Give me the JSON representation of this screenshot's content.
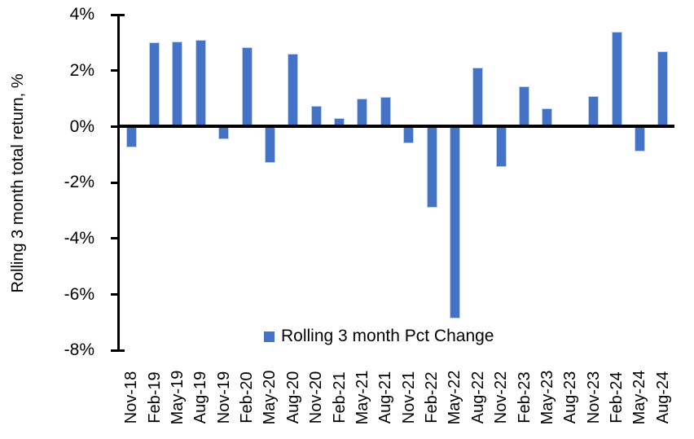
{
  "chart_data": {
    "type": "bar",
    "title": "",
    "xlabel": "",
    "ylabel": "Rolling 3 month total return, %",
    "legend_position": "bottom-center",
    "grid": false,
    "ylim": [
      -8,
      4
    ],
    "yticks": [
      4,
      2,
      0,
      -2,
      -4,
      -6,
      -8
    ],
    "ytick_labels": [
      "4%",
      "2%",
      "0%",
      "-2%",
      "-4%",
      "-6%",
      "-8%"
    ],
    "categories": [
      "Nov-18",
      "Feb-19",
      "May-19",
      "Aug-19",
      "Nov-19",
      "Feb-20",
      "May-20",
      "Aug-20",
      "Nov-20",
      "Feb-21",
      "May-21",
      "Aug-21",
      "Nov-21",
      "Feb-22",
      "May-22",
      "Aug-22",
      "Nov-22",
      "Feb-23",
      "May-23",
      "Aug-23",
      "Nov-23",
      "Feb-24",
      "May-24",
      "Aug-24"
    ],
    "series": [
      {
        "name": "Rolling 3 month Pct Change",
        "values": [
          -0.75,
          3.0,
          3.05,
          3.1,
          -0.45,
          2.85,
          -1.3,
          2.6,
          0.75,
          0.3,
          1.0,
          1.05,
          -0.6,
          -2.9,
          -6.85,
          2.1,
          -1.45,
          1.45,
          0.65,
          0,
          1.1,
          3.4,
          -0.9,
          2.7
        ]
      }
    ],
    "colors": {
      "bar_fill": "#4472C4",
      "bar_border": "#BDD0EE",
      "axis": "#000000",
      "text": "#000000",
      "background": "#FFFFFF"
    }
  }
}
